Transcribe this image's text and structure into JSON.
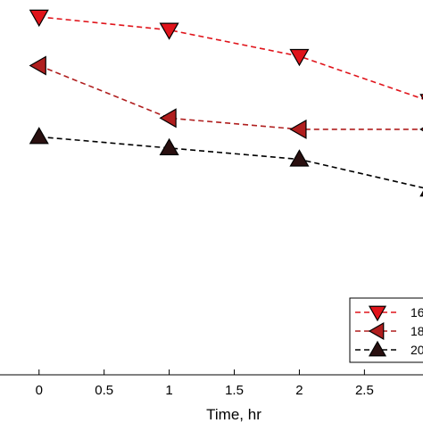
{
  "chart_data": {
    "type": "line",
    "xlabel": "Time, hr",
    "ylabel": "",
    "xlim": [
      -0.3,
      2.95
    ],
    "ylim": [
      0,
      1
    ],
    "x_ticks": [
      "0",
      "0.5",
      "1",
      "1.5",
      "2",
      "2.5"
    ],
    "x_tick_values": [
      0,
      0.5,
      1,
      1.5,
      2,
      2.5
    ],
    "series": [
      {
        "name": "16",
        "color": "#e0141b",
        "marker": "triangle-down",
        "x": [
          0,
          1,
          2,
          3
        ],
        "y": [
          0.955,
          0.92,
          0.85,
          0.73
        ]
      },
      {
        "name": "18",
        "color": "#b01e1e",
        "marker": "triangle-left",
        "x": [
          0,
          1,
          2,
          3
        ],
        "y": [
          0.825,
          0.685,
          0.655,
          0.655
        ]
      },
      {
        "name": "20",
        "color": "#2a1010",
        "line_color": "#000000",
        "marker": "triangle-up",
        "x": [
          0,
          1,
          2,
          3
        ],
        "y": [
          0.635,
          0.605,
          0.575,
          0.495
        ]
      }
    ],
    "legend_position": "bottom-right",
    "grid": false
  }
}
